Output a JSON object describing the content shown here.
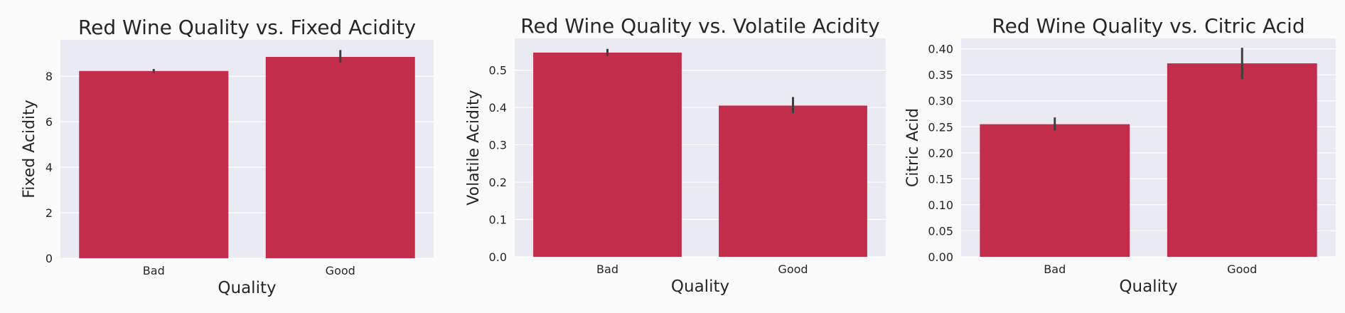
{
  "bar_color": "#c12d4a",
  "error_color": "#3f3f3f",
  "background_color": "#eaeaf2",
  "chart_data": [
    {
      "type": "bar",
      "title": "Red Wine Quality vs. Fixed Acidity",
      "xlabel": "Quality",
      "ylabel": "Fixed Acidity",
      "categories": [
        "Bad",
        "Good"
      ],
      "values": [
        8.23,
        8.85
      ],
      "error_bars": [
        [
          8.15,
          8.32
        ],
        [
          8.6,
          9.15
        ]
      ],
      "ylim": [
        0,
        9.6
      ],
      "yticks": [
        0,
        2,
        4,
        6,
        8
      ],
      "ytick_labels": [
        "0",
        "2",
        "4",
        "6",
        "8"
      ],
      "grid": true
    },
    {
      "type": "bar",
      "title": "Red Wine Quality vs. Volatile Acidity",
      "xlabel": "Quality",
      "ylabel": "Volatile Acidity",
      "categories": [
        "Bad",
        "Good"
      ],
      "values": [
        0.547,
        0.405
      ],
      "error_bars": [
        [
          0.538,
          0.557
        ],
        [
          0.385,
          0.428
        ]
      ],
      "ylim": [
        0,
        0.585
      ],
      "yticks": [
        0.0,
        0.1,
        0.2,
        0.3,
        0.4,
        0.5
      ],
      "ytick_labels": [
        "0.0",
        "0.1",
        "0.2",
        "0.3",
        "0.4",
        "0.5"
      ],
      "grid": true
    },
    {
      "type": "bar",
      "title": "Red Wine Quality vs. Citric Acid",
      "xlabel": "Quality",
      "ylabel": "Citric Acid",
      "categories": [
        "Bad",
        "Good"
      ],
      "values": [
        0.255,
        0.372
      ],
      "error_bars": [
        [
          0.243,
          0.268
        ],
        [
          0.342,
          0.402
        ]
      ],
      "ylim": [
        0,
        0.42
      ],
      "yticks": [
        0.0,
        0.05,
        0.1,
        0.15,
        0.2,
        0.25,
        0.3,
        0.35,
        0.4
      ],
      "ytick_labels": [
        "0.00",
        "0.05",
        "0.10",
        "0.15",
        "0.20",
        "0.25",
        "0.30",
        "0.35",
        "0.40"
      ],
      "grid": true
    }
  ]
}
